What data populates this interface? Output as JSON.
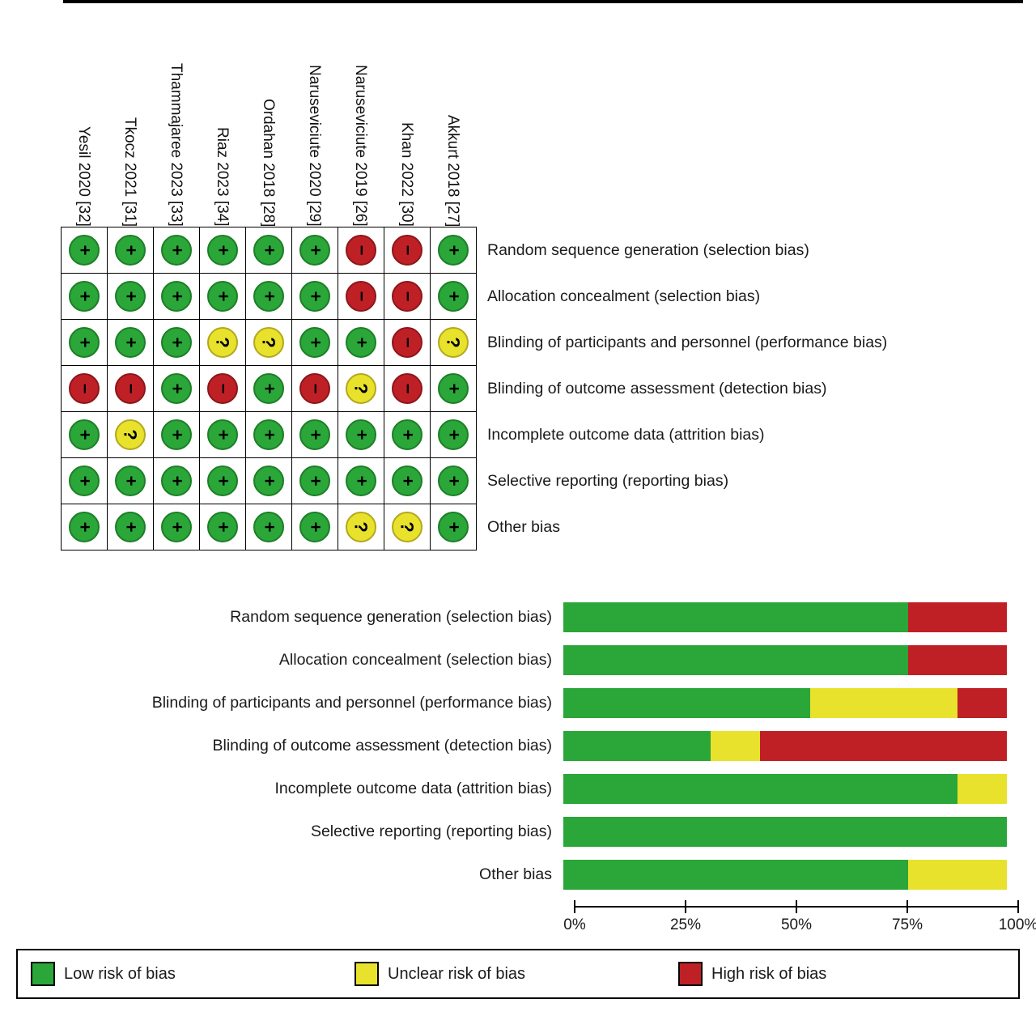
{
  "colors": {
    "low": "#2ba638",
    "unclear": "#e8e22c",
    "high": "#bf2026",
    "low_dark": "#1d7e28",
    "unclear_dark": "#b3a81e",
    "high_dark": "#8c161b"
  },
  "legend": {
    "items": [
      {
        "key": "low",
        "label": "Low risk of bias"
      },
      {
        "key": "unclear",
        "label": "Unclear risk of bias"
      },
      {
        "key": "high",
        "label": "High risk of bias"
      }
    ]
  },
  "chart_data": [
    {
      "type": "heatmap",
      "name": "risk-of-bias-summary",
      "studies": [
        "Yesil 2020 [32]",
        "Tkocz 2021 [31]",
        "Thammajaree 2023 [33]",
        "Riaz 2023 [34]",
        "Ordahan 2018 [28]",
        "Naruseviciute 2020 [29]",
        "Naruseviciute 2019 [26]",
        "Khan 2022 [30]",
        "Akkurt 2018 [27]"
      ],
      "domains": [
        "Random sequence generation (selection bias)",
        "Allocation concealment (selection bias)",
        "Blinding of participants and personnel (performance bias)",
        "Blinding of outcome assessment (detection bias)",
        "Incomplete outcome data (attrition bias)",
        "Selective reporting (reporting bias)",
        "Other bias"
      ],
      "judgements": [
        [
          "low",
          "low",
          "low",
          "low",
          "low",
          "low",
          "high",
          "high",
          "low"
        ],
        [
          "low",
          "low",
          "low",
          "low",
          "low",
          "low",
          "high",
          "high",
          "low"
        ],
        [
          "low",
          "low",
          "low",
          "unclear",
          "unclear",
          "low",
          "low",
          "high",
          "unclear"
        ],
        [
          "high",
          "high",
          "low",
          "high",
          "low",
          "high",
          "unclear",
          "high",
          "low"
        ],
        [
          "low",
          "unclear",
          "low",
          "low",
          "low",
          "low",
          "low",
          "low",
          "low"
        ],
        [
          "low",
          "low",
          "low",
          "low",
          "low",
          "low",
          "low",
          "low",
          "low"
        ],
        [
          "low",
          "low",
          "low",
          "low",
          "low",
          "low",
          "unclear",
          "unclear",
          "low"
        ]
      ],
      "symbols": {
        "low": "+",
        "unclear": "?",
        "high": "−"
      }
    },
    {
      "type": "bar",
      "name": "risk-of-bias-graph",
      "stacked": true,
      "xlim": [
        0,
        100
      ],
      "x_ticks": [
        "0%",
        "25%",
        "50%",
        "75%",
        "100%"
      ],
      "categories": [
        "Random sequence generation (selection bias)",
        "Allocation concealment (selection bias)",
        "Blinding of participants and personnel (performance bias)",
        "Blinding of outcome assessment (detection bias)",
        "Incomplete outcome data (attrition bias)",
        "Selective reporting (reporting bias)",
        "Other bias"
      ],
      "series": [
        {
          "name": "Low risk of bias",
          "key": "low",
          "values": [
            77.8,
            77.8,
            55.6,
            33.3,
            88.9,
            100,
            77.8
          ]
        },
        {
          "name": "Unclear risk of bias",
          "key": "unclear",
          "values": [
            0,
            0,
            33.3,
            11.1,
            11.1,
            0,
            22.2
          ]
        },
        {
          "name": "High risk of bias",
          "key": "high",
          "values": [
            22.2,
            22.2,
            11.1,
            55.6,
            0,
            0,
            0
          ]
        }
      ]
    }
  ]
}
